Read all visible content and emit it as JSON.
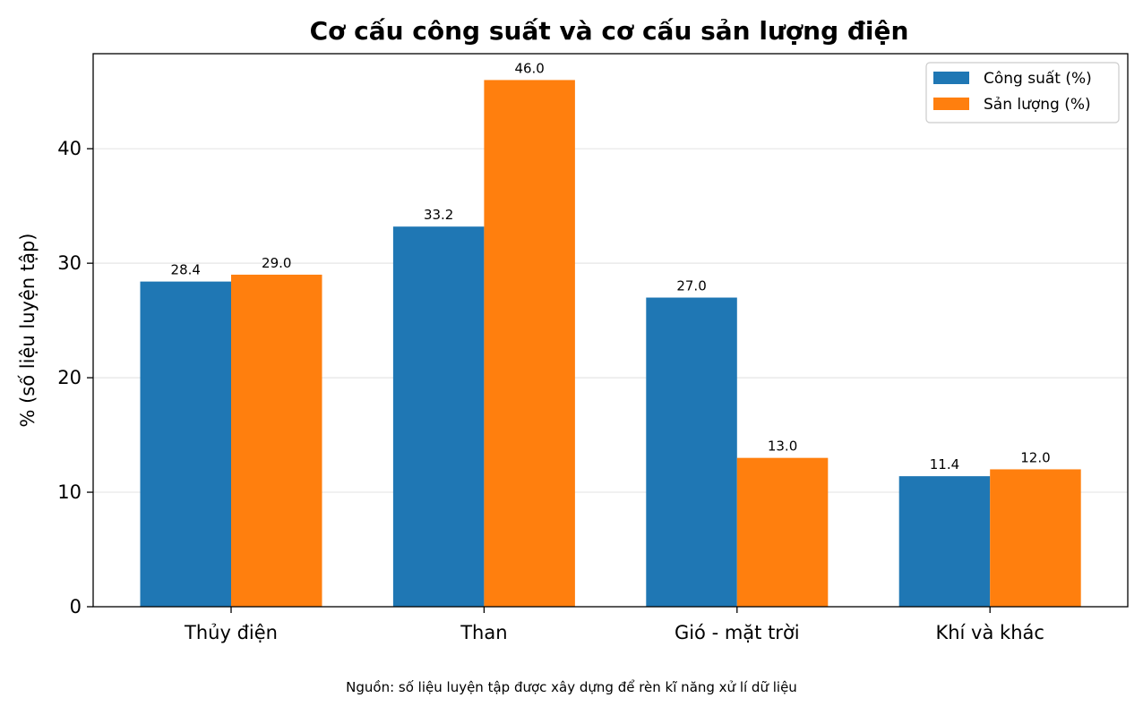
{
  "chart_data": {
    "type": "bar",
    "title": "Cơ cấu công suất và cơ cấu sản lượng điện",
    "xlabel": "",
    "ylabel": "% (số liệu luyện tập)",
    "categories": [
      "Thủy điện",
      "Than",
      "Gió - mặt trời",
      "Khí và khác"
    ],
    "series": [
      {
        "name": "Công suất (%)",
        "values": [
          28.4,
          33.2,
          27.0,
          11.4
        ],
        "color": "#1f77b4"
      },
      {
        "name": "Sản lượng (%)",
        "values": [
          29.0,
          46.0,
          13.0,
          12.0
        ],
        "color": "#ff7f0e"
      }
    ],
    "data_labels": [
      [
        "28.4",
        "33.2",
        "27.0",
        "11.4"
      ],
      [
        "29.0",
        "46.0",
        "13.0",
        "12.0"
      ]
    ],
    "ylim": [
      0,
      48.3
    ],
    "yticks": [
      0,
      10,
      20,
      30,
      40
    ],
    "ytick_labels": [
      "0",
      "10",
      "20",
      "30",
      "40"
    ],
    "grid": "horizontal",
    "legend_position": "top-right",
    "source_note": "Nguồn: số liệu luyện tập được xây dựng để rèn kĩ năng xử lí dữ liệu"
  }
}
